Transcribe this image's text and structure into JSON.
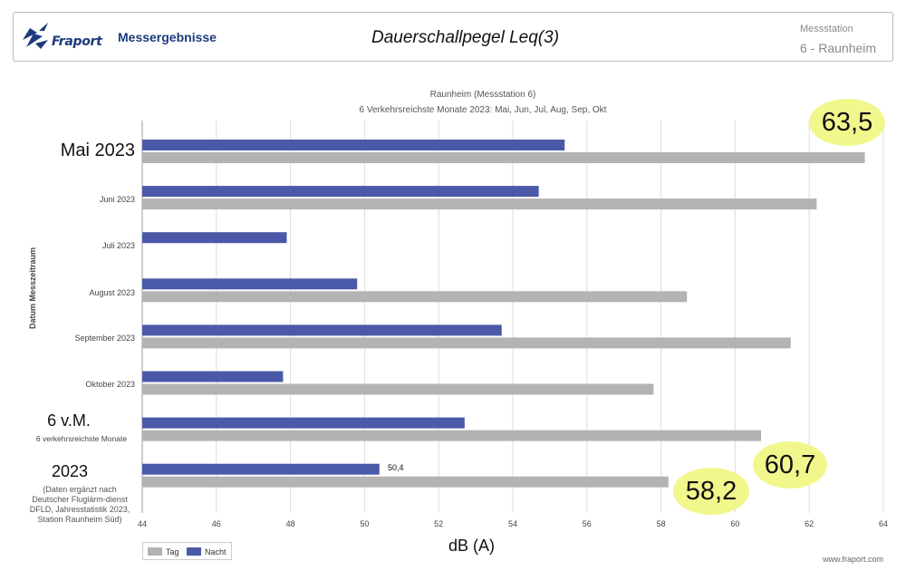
{
  "header": {
    "logo_text": "Fraport",
    "section": "Messergebnisse",
    "title": "Dauerschallpegel  Leq(3)",
    "station_label": "Messstation",
    "station_value": "6 - Raunheim"
  },
  "chart_data": {
    "type": "bar",
    "orientation": "horizontal",
    "title": "Raunheim (Messstation 6)",
    "subtitle": "6 Verkehrsreichste Monate 2023: Mai, Jun, Jul, Aug, Sep, Okt",
    "xlabel": "dB (A)",
    "ylabel": "Datum Messzeitraum",
    "xlim": [
      44,
      64
    ],
    "xticks": [
      "44",
      "46",
      "48",
      "50",
      "52",
      "54",
      "56",
      "58",
      "60",
      "62",
      "64"
    ],
    "categories": [
      "Mai 2023",
      "Juni 2023",
      "Juli 2023",
      "August 2023",
      "September 2023",
      "Oktober 2023",
      "6 v.M.",
      "2023"
    ],
    "category_notes": [
      "",
      "",
      "",
      "",
      "",
      "",
      "6 verkehrsreichste Monate",
      "(Daten ergänzt nach Deutscher Fluglärm-dienst DFLD, Jahresstatistik 2023, Station Raunheim Süd)"
    ],
    "series": [
      {
        "name": "Nacht",
        "color": "#4a5aa8",
        "values": [
          55.4,
          54.7,
          47.9,
          49.8,
          53.7,
          47.8,
          52.7,
          50.4
        ]
      },
      {
        "name": "Tag",
        "color": "#b3b3b3",
        "values": [
          63.5,
          62.2,
          null,
          58.7,
          61.5,
          57.8,
          60.7,
          58.2
        ]
      }
    ],
    "data_labels": {
      "nacht_2023": "50,4"
    },
    "legend": {
      "position": "bottom-left",
      "items": [
        "Tag",
        "Nacht"
      ]
    },
    "annotations": [
      "63,5",
      "60,7",
      "58,2"
    ]
  },
  "footer": "www.fraport.com"
}
